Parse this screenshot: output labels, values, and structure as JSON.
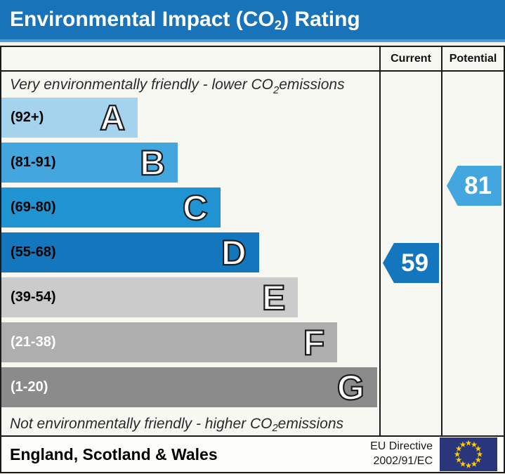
{
  "title": {
    "prefix": "Environmental Impact (CO",
    "subscript": "2",
    "suffix": ") Rating"
  },
  "header": {
    "current": "Current",
    "potential": "Potential"
  },
  "notes": {
    "top": {
      "prefix": "Very environmentally friendly - lower CO",
      "subscript": "2",
      "suffix": " emissions"
    },
    "bottom": {
      "prefix": "Not environmentally friendly - higher CO",
      "subscript": "2",
      "suffix": " emissions"
    }
  },
  "chart_data": {
    "type": "bar",
    "title": "Environmental Impact (CO2) Rating",
    "orientation": "horizontal",
    "bands": [
      {
        "letter": "A",
        "range_label": "(92+)",
        "range_min": 92,
        "range_max": 100,
        "color": "#a5d3ee",
        "text_color": "#000000",
        "width_pct": 36.1
      },
      {
        "letter": "B",
        "range_label": "(81-91)",
        "range_min": 81,
        "range_max": 91,
        "color": "#44a6de",
        "text_color": "#000000",
        "width_pct": 46.7
      },
      {
        "letter": "C",
        "range_label": "(69-80)",
        "range_min": 69,
        "range_max": 80,
        "color": "#2094d3",
        "text_color": "#000000",
        "width_pct": 58.0
      },
      {
        "letter": "D",
        "range_label": "(55-68)",
        "range_min": 55,
        "range_max": 68,
        "color": "#1477bd",
        "text_color": "#000000",
        "width_pct": 68.2
      },
      {
        "letter": "E",
        "range_label": "(39-54)",
        "range_min": 39,
        "range_max": 54,
        "color": "#cbcbcb",
        "text_color": "#000000",
        "width_pct": 78.5
      },
      {
        "letter": "F",
        "range_label": "(21-38)",
        "range_min": 21,
        "range_max": 38,
        "color": "#aeaeae",
        "text_color": "#ffffff",
        "width_pct": 88.9
      },
      {
        "letter": "G",
        "range_label": "(1-20)",
        "range_min": 1,
        "range_max": 20,
        "color": "#8b8b8b",
        "text_color": "#ffffff",
        "width_pct": 99.4
      }
    ],
    "markers": {
      "current": {
        "value": 59,
        "band": "D",
        "color": "#1477bd"
      },
      "potential": {
        "value": 81,
        "band": "B",
        "color": "#44a6de"
      }
    }
  },
  "footer": {
    "region": "England, Scotland & Wales",
    "directive": [
      "EU Directive",
      "2002/91/EC"
    ],
    "eu_flag": {
      "background": "#29367c",
      "star_color": "#ffcc00"
    }
  }
}
